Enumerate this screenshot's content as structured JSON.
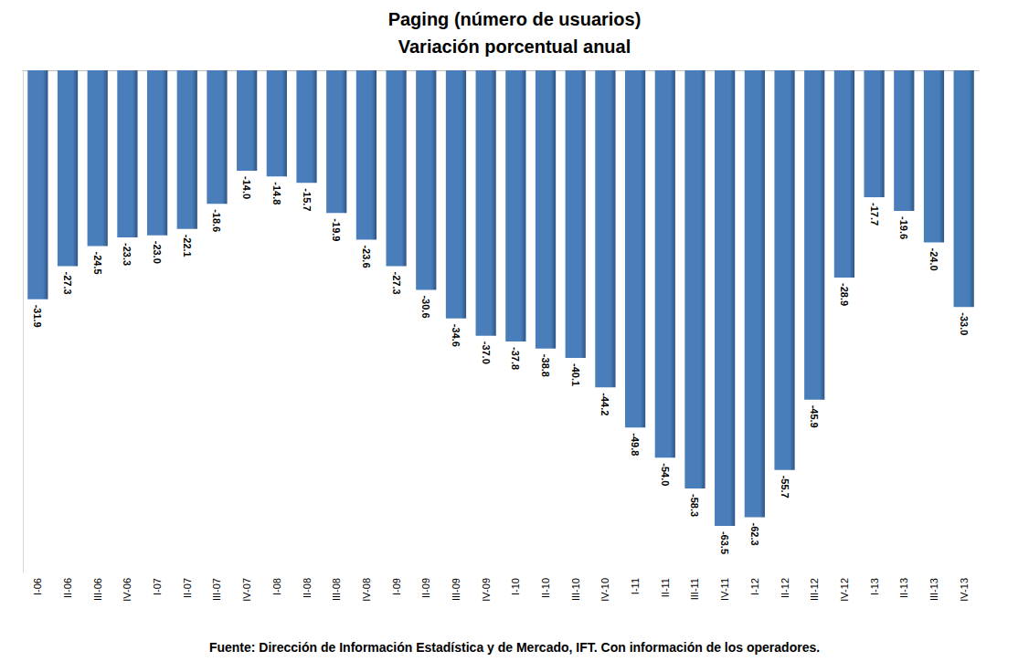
{
  "chart_data": {
    "type": "bar",
    "title": "Paging (número de usuarios)",
    "subtitle": "Variación porcentual anual",
    "source": "Fuente: Dirección de Información Estadística y de Mercado, IFT. Con información de los operadores.",
    "categories": [
      "I-06",
      "II-06",
      "III-06",
      "IV-06",
      "I-07",
      "II-07",
      "III-07",
      "IV-07",
      "I-08",
      "II-08",
      "III-08",
      "IV-08",
      "I-09",
      "II-09",
      "III-09",
      "IV-09",
      "I-10",
      "II-10",
      "III-10",
      "IV-10",
      "I-11",
      "II-11",
      "III-11",
      "IV-11",
      "I-12",
      "II-12",
      "III-12",
      "IV-12",
      "I-13",
      "II-13",
      "III-13",
      "IV-13"
    ],
    "values": [
      -31.9,
      -27.3,
      -24.5,
      -23.3,
      -23.0,
      -22.1,
      -18.6,
      -14.0,
      -14.8,
      -15.7,
      -19.9,
      -23.6,
      -27.3,
      -30.6,
      -34.6,
      -37.0,
      -37.8,
      -38.8,
      -40.1,
      -44.2,
      -49.8,
      -54.0,
      -58.3,
      -63.5,
      -62.3,
      -55.7,
      -45.9,
      -28.9,
      -17.7,
      -19.6,
      -24.0,
      -33.0
    ],
    "value_labels": [
      "-31.9",
      "-27.3",
      "-24.5",
      "-23.3",
      "-23.0",
      "-22.1",
      "-18.6",
      "-14.0",
      "-14.8",
      "-15.7",
      "-19.9",
      "-23.6",
      "-27.3",
      "-30.6",
      "-34.6",
      "-37.0",
      "-37.8",
      "-38.8",
      "-40.1",
      "-44.2",
      "-49.8",
      "-54.0",
      "-58.3",
      "-63.5",
      "-62.3",
      "-55.7",
      "-45.9",
      "-28.9",
      "-17.7",
      "-19.6",
      "-24.0",
      "-33.0"
    ],
    "color": "#4a7ebb",
    "ylim": [
      -70,
      0
    ],
    "yticks": [
      -70,
      0
    ],
    "grid": false,
    "data_labels": true,
    "tick_labels": "x"
  }
}
